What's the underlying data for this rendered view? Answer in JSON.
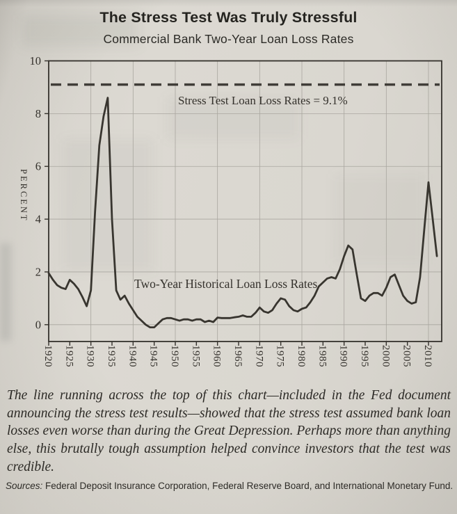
{
  "page": {
    "title": "The Stress Test Was Truly Stressful",
    "subtitle": "Commercial Bank Two-Year Loan Loss Rates",
    "caption": "The line running across the top of this chart—included in the Fed document announcing the stress test results—showed that the stress test assumed bank loan losses even worse than during the Great Depression. Perhaps more than anything else, this brutally tough assumption helped convince investors that the test was credible.",
    "sources_label": "Sources:",
    "sources_text": " Federal Deposit Insurance Corporation, Federal Reserve Board, and International Monetary Fund."
  },
  "colors": {
    "page_bg": "#d8d5ce",
    "ink": "#34312c",
    "grid": "#a9a69f",
    "series_line": "#38352f",
    "reference_line": "#403d38"
  },
  "chart_data": {
    "type": "line",
    "title": "The Stress Test Was Truly Stressful",
    "subtitle": "Commercial Bank Two-Year Loan Loss Rates",
    "ylabel": "PERCENT",
    "xlabel": "",
    "ylim": [
      0,
      10
    ],
    "yticks": [
      0,
      2,
      4,
      6,
      8,
      10
    ],
    "xticks": [
      1920,
      1925,
      1930,
      1935,
      1940,
      1945,
      1950,
      1955,
      1960,
      1965,
      1970,
      1975,
      1980,
      1985,
      1990,
      1995,
      2000,
      2005,
      2010
    ],
    "grid_decades": [
      1930,
      1940,
      1950,
      1960,
      1970,
      1980,
      1990,
      2000,
      2010
    ],
    "grid": "on",
    "legend": "none",
    "reference_line": {
      "value": 9.1,
      "label": "Stress Test Loan Loss Rates = 9.1%",
      "style": "dashed"
    },
    "x": [
      1920,
      1921,
      1922,
      1923,
      1924,
      1925,
      1926,
      1927,
      1928,
      1929,
      1930,
      1931,
      1932,
      1933,
      1934,
      1935,
      1936,
      1937,
      1938,
      1939,
      1940,
      1941,
      1942,
      1943,
      1944,
      1945,
      1946,
      1947,
      1948,
      1949,
      1950,
      1951,
      1952,
      1953,
      1954,
      1955,
      1956,
      1957,
      1958,
      1959,
      1960,
      1961,
      1962,
      1963,
      1964,
      1965,
      1966,
      1967,
      1968,
      1969,
      1970,
      1971,
      1972,
      1973,
      1974,
      1975,
      1976,
      1977,
      1978,
      1979,
      1980,
      1981,
      1982,
      1983,
      1984,
      1985,
      1986,
      1987,
      1988,
      1989,
      1990,
      1991,
      1992,
      1993,
      1994,
      1995,
      1996,
      1997,
      1998,
      1999,
      2000,
      2001,
      2002,
      2003,
      2004,
      2005,
      2006,
      2007,
      2008,
      2009,
      2010,
      2011,
      2012
    ],
    "series": [
      {
        "name": "Two-Year Historical Loan Loss Rates",
        "values": [
          1.95,
          1.7,
          1.5,
          1.4,
          1.35,
          1.7,
          1.55,
          1.35,
          1.05,
          0.7,
          1.3,
          4.3,
          6.8,
          7.9,
          8.6,
          4.0,
          1.3,
          0.95,
          1.1,
          0.8,
          0.55,
          0.3,
          0.15,
          0.0,
          -0.1,
          -0.1,
          0.05,
          0.2,
          0.25,
          0.25,
          0.2,
          0.15,
          0.2,
          0.2,
          0.15,
          0.2,
          0.2,
          0.1,
          0.15,
          0.1,
          0.27,
          0.25,
          0.25,
          0.25,
          0.28,
          0.3,
          0.35,
          0.3,
          0.3,
          0.45,
          0.65,
          0.5,
          0.45,
          0.55,
          0.8,
          1.0,
          0.95,
          0.7,
          0.55,
          0.5,
          0.6,
          0.65,
          0.85,
          1.1,
          1.45,
          1.6,
          1.75,
          1.8,
          1.75,
          2.1,
          2.6,
          3.0,
          2.85,
          1.9,
          1.0,
          0.9,
          1.1,
          1.2,
          1.2,
          1.1,
          1.4,
          1.8,
          1.9,
          1.5,
          1.1,
          0.9,
          0.8,
          0.85,
          1.8,
          3.6,
          5.4,
          4.0,
          2.6
        ]
      }
    ]
  }
}
